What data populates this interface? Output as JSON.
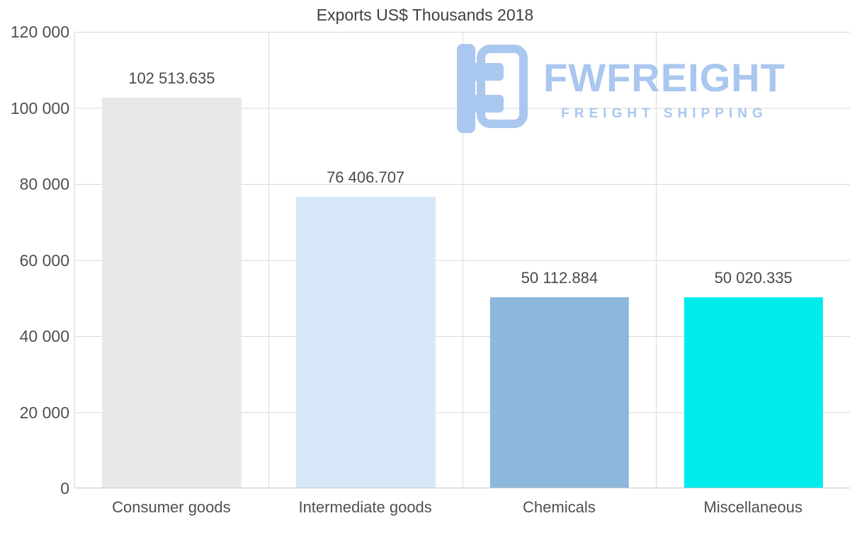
{
  "title": "Exports US$ Thousands 2018",
  "watermark": {
    "brand": "FWFREIGHT",
    "tagline": "FREIGHT SHIPPING",
    "color": "#a9c7ef"
  },
  "chart_data": {
    "type": "bar",
    "title": "Exports US$ Thousands 2018",
    "categories": [
      "Consumer goods",
      "Intermediate goods",
      "Chemicals",
      "Miscellaneous"
    ],
    "values": [
      102513.635,
      76406.707,
      50112.884,
      50020.335
    ],
    "value_labels": [
      "102 513.635",
      "76 406.707",
      "50 112.884",
      "50 020.335"
    ],
    "bar_colors": [
      "#e8e8e8",
      "#d7e8f8",
      "#8db7dd",
      "#00ecec"
    ],
    "xlabel": "",
    "ylabel": "",
    "ylim": [
      0,
      120000
    ],
    "ytick_step": 20000,
    "ytick_labels": [
      "120 000",
      "100 000",
      "80 000",
      "60 000",
      "40 000",
      "20 000",
      "0"
    ],
    "grid": "horizontal lines every 20000 plus vertical category separators",
    "legend_position": "none"
  }
}
